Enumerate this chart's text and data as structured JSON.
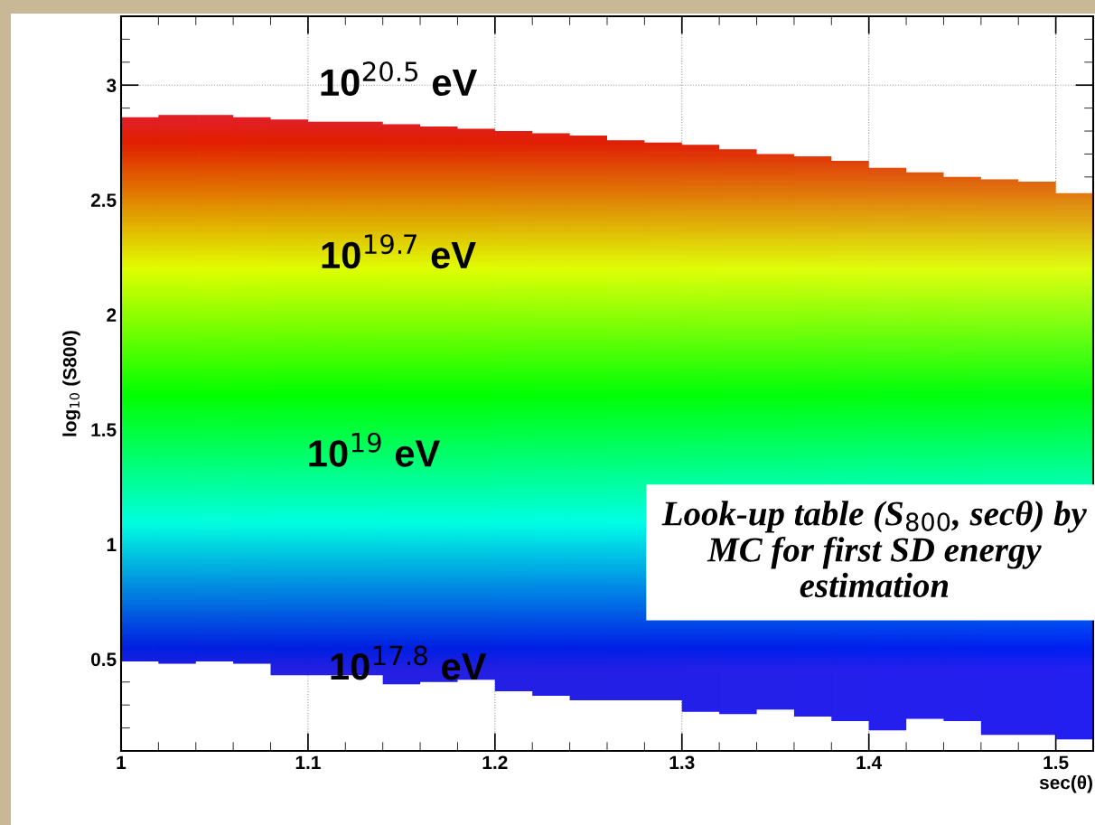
{
  "chart_data": {
    "type": "bar",
    "xlabel": "sec(θ)",
    "ylabel": "log$_{10}$ (S800)",
    "x": [
      1.01,
      1.03,
      1.05,
      1.07,
      1.09,
      1.11,
      1.13,
      1.15,
      1.17,
      1.19,
      1.21,
      1.23,
      1.25,
      1.27,
      1.29,
      1.31,
      1.33,
      1.35,
      1.37,
      1.39,
      1.41,
      1.43,
      1.45,
      1.47,
      1.49,
      1.51
    ],
    "base": [
      0.49,
      0.48,
      0.49,
      0.48,
      0.43,
      0.43,
      0.43,
      0.39,
      0.4,
      0.41,
      0.36,
      0.34,
      0.32,
      0.32,
      0.32,
      0.27,
      0.26,
      0.28,
      0.25,
      0.23,
      0.19,
      0.24,
      0.23,
      0.17,
      0.17,
      0.15
    ],
    "values": [
      2.37,
      2.39,
      2.38,
      2.38,
      2.42,
      2.41,
      2.41,
      2.44,
      2.42,
      2.4,
      2.44,
      2.45,
      2.46,
      2.44,
      2.43,
      2.47,
      2.46,
      2.42,
      2.44,
      2.44,
      2.45,
      2.38,
      2.37,
      2.42,
      2.41,
      2.38
    ],
    "xlim": [
      1,
      1.52
    ],
    "xticks": [
      1,
      1.1,
      1.2,
      1.3,
      1.4,
      1.5
    ],
    "ylim": [
      0.1,
      3.3
    ],
    "yticks": [
      0.5,
      1,
      1.5,
      2,
      2.5,
      3
    ],
    "grid": true,
    "annotations": [
      "10$^{20.5}$ eV",
      "10$^{19.7}$ eV",
      "10$^{19}$ eV",
      "10$^{17.8}$ eV",
      "Look-up table (S$_{800}$, secθ) by MC for first SD energy estimation"
    ]
  }
}
